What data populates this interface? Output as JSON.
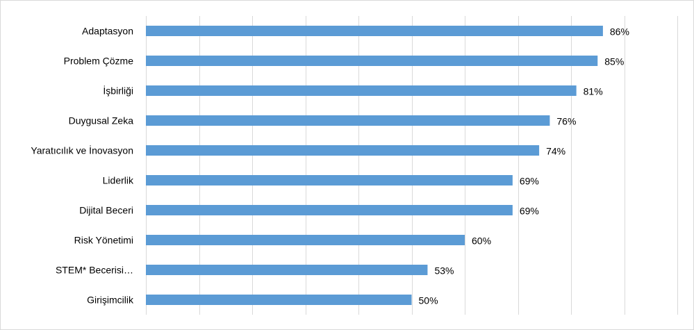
{
  "chart_data": {
    "type": "bar",
    "orientation": "horizontal",
    "categories": [
      "Adaptasyon",
      "Problem Çözme",
      "İşbirliği",
      "Duygusal Zeka",
      "Yaratıcılık ve İnovasyon",
      "Liderlik",
      "Dijital Beceri",
      "Risk Yönetimi",
      "STEM* Becerisi…",
      "Girişimcilik"
    ],
    "values": [
      86,
      85,
      81,
      76,
      74,
      69,
      69,
      60,
      53,
      50
    ],
    "value_labels": [
      "86%",
      "85%",
      "81%",
      "76%",
      "74%",
      "69%",
      "69%",
      "60%",
      "53%",
      "50%"
    ],
    "title": "",
    "xlabel": "",
    "ylabel": "",
    "xlim": [
      0,
      100
    ],
    "grid": true,
    "legend": "none",
    "bar_color": "#5b9bd5"
  }
}
